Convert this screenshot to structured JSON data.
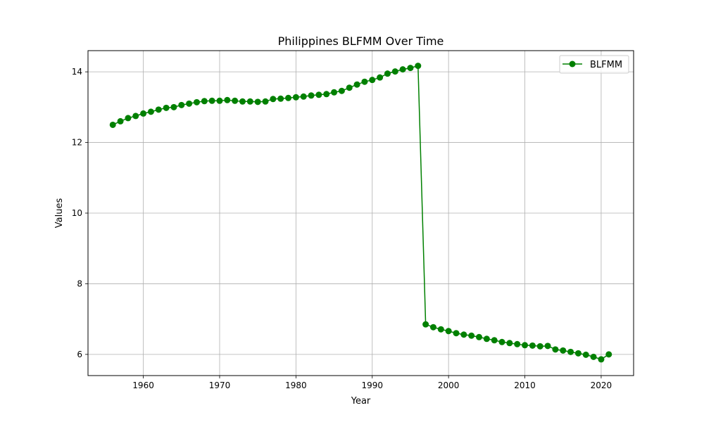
{
  "chart_data": {
    "type": "line",
    "title": "Philippines BLFMM Over Time",
    "xlabel": "Year",
    "ylabel": "Values",
    "xlim": [
      1952.75,
      2024.25
    ],
    "ylim": [
      5.4,
      14.6
    ],
    "xticks": [
      1960,
      1970,
      1980,
      1990,
      2000,
      2010,
      2020
    ],
    "yticks": [
      6,
      8,
      10,
      12,
      14
    ],
    "grid": true,
    "legend_position": "top-right",
    "series": [
      {
        "name": "BLFMM",
        "color": "#008000",
        "marker": "circle",
        "x": [
          1956,
          1957,
          1958,
          1959,
          1960,
          1961,
          1962,
          1963,
          1964,
          1965,
          1966,
          1967,
          1968,
          1969,
          1970,
          1971,
          1972,
          1973,
          1974,
          1975,
          1976,
          1977,
          1978,
          1979,
          1980,
          1981,
          1982,
          1983,
          1984,
          1985,
          1986,
          1987,
          1988,
          1989,
          1990,
          1991,
          1992,
          1993,
          1994,
          1995,
          1996,
          1997,
          1998,
          1999,
          2000,
          2001,
          2002,
          2003,
          2004,
          2005,
          2006,
          2007,
          2008,
          2009,
          2010,
          2011,
          2012,
          2013,
          2014,
          2015,
          2016,
          2017,
          2018,
          2019,
          2020,
          2021
        ],
        "values": [
          12.5,
          12.6,
          12.69,
          12.75,
          12.82,
          12.87,
          12.93,
          12.98,
          13.0,
          13.06,
          13.1,
          13.14,
          13.17,
          13.18,
          13.18,
          13.2,
          13.18,
          13.16,
          13.16,
          13.15,
          13.16,
          13.23,
          13.24,
          13.26,
          13.28,
          13.3,
          13.33,
          13.35,
          13.37,
          13.42,
          13.46,
          13.55,
          13.64,
          13.72,
          13.77,
          13.84,
          13.95,
          14.01,
          14.07,
          14.11,
          14.17,
          6.85,
          6.77,
          6.71,
          6.66,
          6.6,
          6.56,
          6.53,
          6.49,
          6.44,
          6.4,
          6.35,
          6.32,
          6.29,
          6.26,
          6.25,
          6.23,
          6.24,
          6.14,
          6.11,
          6.07,
          6.03,
          5.99,
          5.93,
          5.86,
          6.0
        ]
      }
    ]
  }
}
